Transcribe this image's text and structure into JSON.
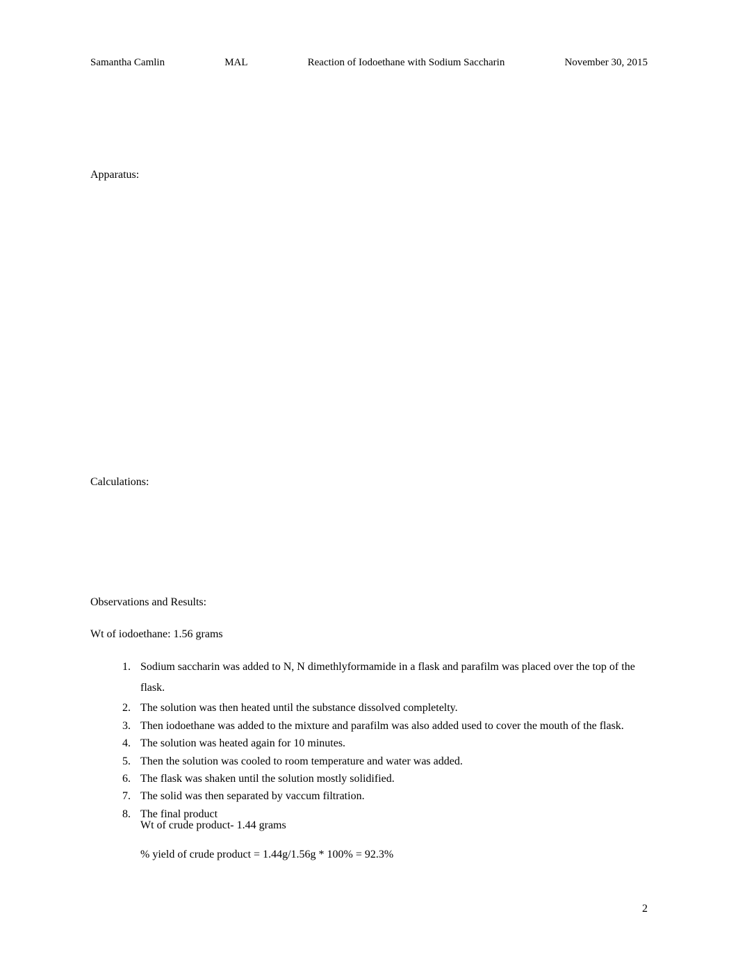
{
  "header": {
    "author": "Samantha Camlin",
    "code": "MAL",
    "title": "Reaction of Iodoethane with Sodium Saccharin",
    "date": "November 30, 2015"
  },
  "sections": {
    "apparatus": "Apparatus:",
    "calculations": "Calculations:",
    "observations": "Observations and Results:"
  },
  "wt_iodoethane": "Wt of iodoethane: 1.56 grams",
  "steps": {
    "s1": "Sodium saccharin was added to N, N dimethlyformamide in a flask and parafilm was placed over the top of the flask.",
    "s2": "The solution was then heated until the substance dissolved completelty.",
    "s3": "Then iodoethane was added to the mixture and parafilm was also added used to cover the mouth of the flask.",
    "s4": "The solution was heated again for 10 minutes.",
    "s5": "Then the solution was cooled to room temperature and water was added.",
    "s6": "The flask was shaken until the solution mostly solidified.",
    "s7": "The solid was then separated by vaccum filtration.",
    "s8": "The final product",
    "s8_sub": "Wt of crude product- 1.44 grams",
    "s8_yield": "% yield of crude product = 1.44g/1.56g * 100% = 92.3%"
  },
  "page_number": "2"
}
